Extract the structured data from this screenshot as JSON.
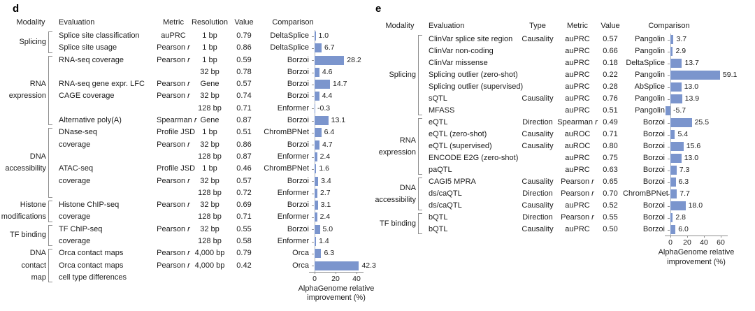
{
  "colors": {
    "bar": "#7b95cd",
    "axis_line": "#8c8c8c",
    "bracket": "#8f8f8f",
    "zero_line": "#abb2bb",
    "text": "#1c1c1c"
  },
  "panels": [
    {
      "key": "d",
      "headers": [
        "Modality",
        "Evaluation",
        "Metric",
        "Resolution",
        "Value",
        "Comparison"
      ],
      "groups": [
        {
          "modality": "Splicing",
          "from": 0,
          "to": 1
        },
        {
          "modality": "RNA expression",
          "from": 2,
          "to": 7
        },
        {
          "modality": "DNA accessibility",
          "from": 8,
          "to": 13
        },
        {
          "modality": "Histone modifications",
          "from": 14,
          "to": 15
        },
        {
          "modality": "TF binding",
          "from": 16,
          "to": 17
        },
        {
          "modality": "DNA contact map",
          "from": 18,
          "to": 20
        }
      ],
      "rows": [
        {
          "evaluation": "Splice site classification",
          "metric": "auPRC",
          "resolution": "1 bp",
          "value": "0.79",
          "comparison": "DeltaSplice",
          "improvement": "1.0"
        },
        {
          "evaluation": "Splice site usage",
          "metric": "Pearson r",
          "resolution": "1 bp",
          "value": "0.86",
          "comparison": "DeltaSplice",
          "improvement": "6.7"
        },
        {
          "evaluation": "RNA-seq coverage",
          "metric": "Pearson r",
          "resolution": "1 bp",
          "value": "0.59",
          "comparison": "Borzoi",
          "improvement": "28.2"
        },
        {
          "evaluation": "",
          "metric": "",
          "resolution": "32 bp",
          "value": "0.78",
          "comparison": "Borzoi",
          "improvement": "4.6"
        },
        {
          "evaluation": "RNA-seq gene expr. LFC",
          "metric": "Pearson r",
          "resolution": "Gene",
          "value": "0.57",
          "comparison": "Borzoi",
          "improvement": "14.7"
        },
        {
          "evaluation": "CAGE coverage",
          "metric": "Pearson r",
          "resolution": "32 bp",
          "value": "0.74",
          "comparison": "Borzoi",
          "improvement": "4.4"
        },
        {
          "evaluation": "",
          "metric": "",
          "resolution": "128 bp",
          "value": "0.71",
          "comparison": "Enformer",
          "improvement": "-0.3"
        },
        {
          "evaluation": "Alternative poly(A)",
          "metric": "Spearman r",
          "resolution": "Gene",
          "value": "0.87",
          "comparison": "Borzoi",
          "improvement": "13.1"
        },
        {
          "evaluation": "DNase-seq",
          "metric": "Profile JSD",
          "resolution": "1 bp",
          "value": "0.51",
          "comparison": "ChromBPNet",
          "improvement": "6.4"
        },
        {
          "evaluation": "coverage",
          "metric": "Pearson r",
          "resolution": "32 bp",
          "value": "0.86",
          "comparison": "Borzoi",
          "improvement": "4.7"
        },
        {
          "evaluation": "",
          "metric": "",
          "resolution": "128 bp",
          "value": "0.87",
          "comparison": "Enformer",
          "improvement": "2.4"
        },
        {
          "evaluation": "ATAC-seq",
          "metric": "Profile JSD",
          "resolution": "1 bp",
          "value": "0.46",
          "comparison": "ChromBPNet",
          "improvement": "1.6"
        },
        {
          "evaluation": "coverage",
          "metric": "Pearson r",
          "resolution": "32 bp",
          "value": "0.57",
          "comparison": "Borzoi",
          "improvement": "3.4"
        },
        {
          "evaluation": "",
          "metric": "",
          "resolution": "128 bp",
          "value": "0.72",
          "comparison": "Enformer",
          "improvement": "2.7"
        },
        {
          "evaluation": "Histone ChIP-seq",
          "metric": "Pearson r",
          "resolution": "32 bp",
          "value": "0.69",
          "comparison": "Borzoi",
          "improvement": "3.1"
        },
        {
          "evaluation": "coverage",
          "metric": "",
          "resolution": "128 bp",
          "value": "0.71",
          "comparison": "Enformer",
          "improvement": "2.4"
        },
        {
          "evaluation": "TF ChIP-seq",
          "metric": "Pearson r",
          "resolution": "32 bp",
          "value": "0.55",
          "comparison": "Borzoi",
          "improvement": "5.0"
        },
        {
          "evaluation": "coverage",
          "metric": "",
          "resolution": "128 bp",
          "value": "0.58",
          "comparison": "Enformer",
          "improvement": "1.4"
        },
        {
          "evaluation": "Orca contact maps",
          "metric": "Pearson r",
          "resolution": "4,000 bp",
          "value": "0.79",
          "comparison": "Orca",
          "improvement": "6.3"
        },
        {
          "evaluation": "Orca contact maps",
          "metric": "Pearson r",
          "resolution": "4,000 bp",
          "value": "0.42",
          "comparison": "Orca",
          "improvement": "42.3"
        }
      ],
      "extra_line": "cell type differences",
      "axis": {
        "ticks": [
          0,
          20,
          40
        ],
        "label_line1": "AlphaGenome relative",
        "label_line2": "improvement (%)"
      }
    },
    {
      "key": "e",
      "headers": [
        "Modality",
        "Evaluation",
        "Type",
        "Metric",
        "Value",
        "Comparison"
      ],
      "groups": [
        {
          "modality": "Splicing",
          "from": 0,
          "to": 6
        },
        {
          "modality": "RNA expression",
          "from": 7,
          "to": 11
        },
        {
          "modality": "DNA accessibility",
          "from": 12,
          "to": 14
        },
        {
          "modality": "TF binding",
          "from": 15,
          "to": 16
        }
      ],
      "rows": [
        {
          "evaluation": "ClinVar splice site region",
          "type": "Causality",
          "metric": "auPRC",
          "value": "0.57",
          "comparison": "Pangolin",
          "improvement": "3.7"
        },
        {
          "evaluation": "ClinVar non-coding",
          "type": "",
          "metric": "auPRC",
          "value": "0.66",
          "comparison": "Pangolin",
          "improvement": "2.9"
        },
        {
          "evaluation": "ClinVar missense",
          "type": "",
          "metric": "auPRC",
          "value": "0.18",
          "comparison": "DeltaSplice",
          "improvement": "13.7"
        },
        {
          "evaluation": "Splicing outlier (zero-shot)",
          "type": "",
          "metric": "auPRC",
          "value": "0.22",
          "comparison": "Pangolin",
          "improvement": "59.1"
        },
        {
          "evaluation": "Splicing outlier (supervised)",
          "type": "",
          "metric": "auPRC",
          "value": "0.28",
          "comparison": "AbSplice",
          "improvement": "13.0"
        },
        {
          "evaluation": "sQTL",
          "type": "Causality",
          "metric": "auPRC",
          "value": "0.76",
          "comparison": "Pangolin",
          "improvement": "13.9"
        },
        {
          "evaluation": "MFASS",
          "type": "",
          "metric": "auPRC",
          "value": "0.51",
          "comparison": "Pangolin",
          "improvement": "-5.7"
        },
        {
          "evaluation": "eQTL",
          "type": "Direction",
          "metric": "Spearman r",
          "value": "0.49",
          "comparison": "Borzoi",
          "improvement": "25.5"
        },
        {
          "evaluation": "eQTL (zero-shot)",
          "type": "Causality",
          "metric": "auROC",
          "value": "0.71",
          "comparison": "Borzoi",
          "improvement": "5.4"
        },
        {
          "evaluation": "eQTL (supervised)",
          "type": "Causality",
          "metric": "auROC",
          "value": "0.80",
          "comparison": "Borzoi",
          "improvement": "15.6"
        },
        {
          "evaluation": "ENCODE E2G (zero-shot)",
          "type": "",
          "metric": "auPRC",
          "value": "0.75",
          "comparison": "Borzoi",
          "improvement": "13.0"
        },
        {
          "evaluation": "paQTL",
          "type": "",
          "metric": "auPRC",
          "value": "0.63",
          "comparison": "Borzoi",
          "improvement": "7.3"
        },
        {
          "evaluation": "CAGI5 MPRA",
          "type": "Causality",
          "metric": "Pearson r",
          "value": "0.65",
          "comparison": "Borzoi",
          "improvement": "6.3"
        },
        {
          "evaluation": "ds/caQTL",
          "type": "Direction",
          "metric": "Pearson r",
          "value": "0.70",
          "comparison": "ChromBPNet",
          "improvement": "7.7"
        },
        {
          "evaluation": "ds/caQTL",
          "type": "Causality",
          "metric": "auPRC",
          "value": "0.52",
          "comparison": "Borzoi",
          "improvement": "18.0"
        },
        {
          "evaluation": "bQTL",
          "type": "Direction",
          "metric": "Pearson r",
          "value": "0.55",
          "comparison": "Borzoi",
          "improvement": "2.8"
        },
        {
          "evaluation": "bQTL",
          "type": "Causality",
          "metric": "auPRC",
          "value": "0.50",
          "comparison": "Borzoi",
          "improvement": "6.0"
        }
      ],
      "axis": {
        "ticks": [
          0,
          20,
          40,
          60
        ],
        "label_line1": "AlphaGenome relative",
        "label_line2": "improvement (%)"
      }
    }
  ],
  "chart_data": [
    {
      "type": "bar",
      "orientation": "horizontal",
      "panel": "d",
      "title": "",
      "xlabel": "AlphaGenome relative improvement (%)",
      "xticks": [
        0,
        20,
        40
      ],
      "xlim": [
        -2,
        52
      ],
      "categories": [
        "DeltaSplice",
        "DeltaSplice",
        "Borzoi",
        "Borzoi",
        "Borzoi",
        "Borzoi",
        "Enformer",
        "Borzoi",
        "ChromBPNet",
        "Borzoi",
        "Enformer",
        "ChromBPNet",
        "Borzoi",
        "Enformer",
        "Borzoi",
        "Enformer",
        "Borzoi",
        "Enformer",
        "Orca",
        "Orca"
      ],
      "values": [
        1.0,
        6.7,
        28.2,
        4.6,
        14.7,
        4.4,
        -0.3,
        13.1,
        6.4,
        4.7,
        2.4,
        1.6,
        3.4,
        2.7,
        3.1,
        2.4,
        5.0,
        1.4,
        6.3,
        42.3
      ]
    },
    {
      "type": "bar",
      "orientation": "horizontal",
      "panel": "e",
      "title": "",
      "xlabel": "AlphaGenome relative improvement (%)",
      "xticks": [
        0,
        20,
        40,
        60
      ],
      "xlim": [
        -8,
        65
      ],
      "categories": [
        "Pangolin",
        "Pangolin",
        "DeltaSplice",
        "Pangolin",
        "AbSplice",
        "Pangolin",
        "Pangolin",
        "Borzoi",
        "Borzoi",
        "Borzoi",
        "Borzoi",
        "Borzoi",
        "Borzoi",
        "ChromBPNet",
        "Borzoi",
        "Borzoi",
        "Borzoi"
      ],
      "values": [
        3.7,
        2.9,
        13.7,
        59.1,
        13.0,
        13.9,
        -5.7,
        25.5,
        5.4,
        15.6,
        13.0,
        7.3,
        6.3,
        7.7,
        18.0,
        2.8,
        6.0
      ]
    }
  ]
}
